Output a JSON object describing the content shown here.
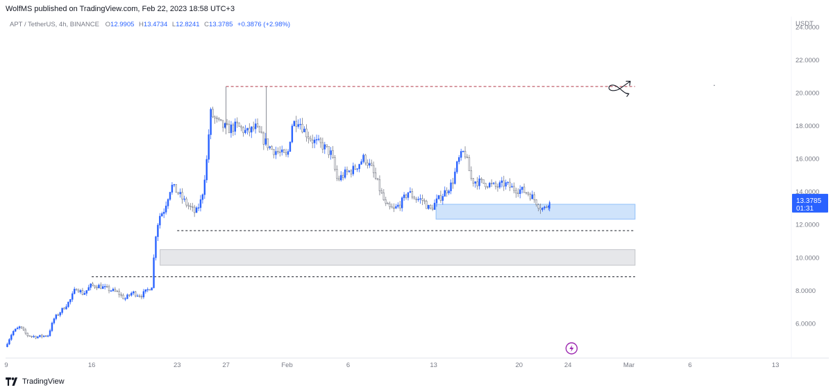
{
  "header": {
    "publisher": "WolfMS published on TradingView.com, Feb 22, 2023 18:58 UTC+3"
  },
  "legend": {
    "symbol": "APT / TetherUS, 4h, BINANCE",
    "open_label": "O",
    "open": "12.9905",
    "high_label": "H",
    "high": "13.4734",
    "low_label": "L",
    "low": "12.8241",
    "close_label": "C",
    "close": "13.3785",
    "change": "+0.3876 (+2.98%)"
  },
  "price_badge": {
    "price": "13.3785",
    "countdown": "01:31"
  },
  "footer": {
    "brand": "TradingView"
  },
  "colors": {
    "up": "#2962ff",
    "down": "#787b86",
    "zone_blue": "#cfe3fb",
    "zone_gray": "#e6e7ea",
    "dash_red": "#b2394a",
    "dash_black": "#131722",
    "badge": "#2962ff",
    "bolt": "#9c27b0"
  },
  "icons": {
    "bolt": "lightning-icon",
    "logo": "tradingview-logo-icon",
    "arrow": "curved-arrow-icon"
  },
  "chart_data": {
    "type": "candlestick",
    "interval": "4h",
    "ylabel": "USDT",
    "ylim": [
      4.0,
      24.6
    ],
    "y_ticks": [
      "24.0000",
      "22.0000",
      "20.0000",
      "18.0000",
      "16.0000",
      "14.0000",
      "12.0000",
      "10.0000",
      "8.0000",
      "6.0000"
    ],
    "y_tick_values": [
      24,
      22,
      20,
      18,
      16,
      14,
      12,
      10,
      8,
      6
    ],
    "x_ticks": [
      "9",
      "16",
      "23",
      "27",
      "Feb",
      "6",
      "13",
      "20",
      "24",
      "Mar",
      "6",
      "13"
    ],
    "x_tick_days": [
      9,
      16,
      23,
      27,
      32,
      37,
      44,
      51,
      55,
      60,
      65,
      72
    ],
    "xlim_days": [
      9,
      73.3
    ],
    "price_path": [
      [
        9.0,
        4.6
      ],
      [
        9.6,
        5.5
      ],
      [
        10.2,
        5.8
      ],
      [
        10.8,
        5.3
      ],
      [
        11.6,
        5.2
      ],
      [
        12.5,
        5.3
      ],
      [
        13.0,
        6.3
      ],
      [
        13.6,
        6.8
      ],
      [
        14.3,
        7.4
      ],
      [
        14.8,
        8.2
      ],
      [
        15.4,
        7.8
      ],
      [
        16.0,
        8.3
      ],
      [
        16.6,
        8.3
      ],
      [
        17.4,
        8.1
      ],
      [
        18.2,
        7.9
      ],
      [
        18.8,
        7.5
      ],
      [
        19.4,
        7.9
      ],
      [
        20.1,
        7.7
      ],
      [
        20.6,
        8.0
      ],
      [
        21.0,
        8.3
      ],
      [
        21.3,
        11.3
      ],
      [
        21.6,
        12.5
      ],
      [
        22.0,
        12.9
      ],
      [
        22.6,
        14.4
      ],
      [
        23.2,
        13.9
      ],
      [
        23.8,
        13.3
      ],
      [
        24.6,
        12.7
      ],
      [
        25.1,
        13.6
      ],
      [
        25.5,
        15.9
      ],
      [
        25.8,
        18.8
      ],
      [
        26.4,
        18.2
      ],
      [
        27.2,
        17.8
      ],
      [
        28.0,
        18.0
      ],
      [
        28.8,
        17.6
      ],
      [
        29.5,
        17.9
      ],
      [
        30.0,
        17.3
      ],
      [
        30.8,
        16.6
      ],
      [
        31.4,
        16.4
      ],
      [
        32.1,
        16.1
      ],
      [
        32.5,
        18.1
      ],
      [
        33.0,
        18.4
      ],
      [
        33.6,
        17.6
      ],
      [
        34.2,
        17.1
      ],
      [
        35.0,
        16.8
      ],
      [
        35.7,
        16.3
      ],
      [
        36.2,
        14.7
      ],
      [
        36.8,
        15.1
      ],
      [
        37.6,
        15.4
      ],
      [
        38.4,
        16.1
      ],
      [
        39.0,
        15.4
      ],
      [
        39.6,
        14.3
      ],
      [
        40.2,
        13.1
      ],
      [
        40.8,
        12.9
      ],
      [
        41.4,
        13.3
      ],
      [
        42.0,
        14.0
      ],
      [
        42.6,
        13.6
      ],
      [
        43.2,
        13.5
      ],
      [
        43.8,
        12.9
      ],
      [
        44.3,
        13.4
      ],
      [
        44.9,
        13.9
      ],
      [
        45.6,
        14.5
      ],
      [
        46.1,
        15.9
      ],
      [
        46.6,
        16.5
      ],
      [
        47.2,
        14.7
      ],
      [
        47.8,
        14.6
      ],
      [
        48.5,
        14.5
      ],
      [
        49.2,
        14.3
      ],
      [
        49.9,
        14.5
      ],
      [
        50.6,
        14.2
      ],
      [
        51.3,
        14.1
      ],
      [
        51.9,
        13.9
      ],
      [
        52.4,
        13.5
      ],
      [
        52.9,
        13.0
      ],
      [
        53.2,
        12.99
      ],
      [
        53.5,
        13.3785
      ]
    ],
    "last_candle": {
      "open": 12.9905,
      "high": 13.4734,
      "low": 12.8241,
      "close": 13.3785,
      "change": 0.3876,
      "change_pct": 2.98
    },
    "last_price": 13.3785,
    "levels": [
      {
        "style": "dashed",
        "color": "red",
        "price": 20.4,
        "from_day": 27.0,
        "to_day": 60.5
      },
      {
        "style": "dashed",
        "color": "black",
        "price": 11.65,
        "from_day": 23.0,
        "to_day": 60.5
      },
      {
        "style": "dashed",
        "color": "black",
        "price": 8.85,
        "from_day": 16.0,
        "to_day": 60.5
      }
    ],
    "zones": [
      {
        "color": "blue",
        "from_day": 44.2,
        "to_day": 60.5,
        "low": 12.35,
        "high": 13.25
      },
      {
        "color": "gray",
        "from_day": 21.6,
        "to_day": 60.5,
        "low": 9.55,
        "high": 10.5
      }
    ],
    "wicks": [
      {
        "day": 27.0,
        "low": 17.5,
        "high": 20.4
      },
      {
        "day": 30.3,
        "low": 17.2,
        "high": 20.4
      }
    ],
    "annotation": {
      "type": "arrow-sketch",
      "day": 59.2,
      "price": 20.3
    }
  }
}
